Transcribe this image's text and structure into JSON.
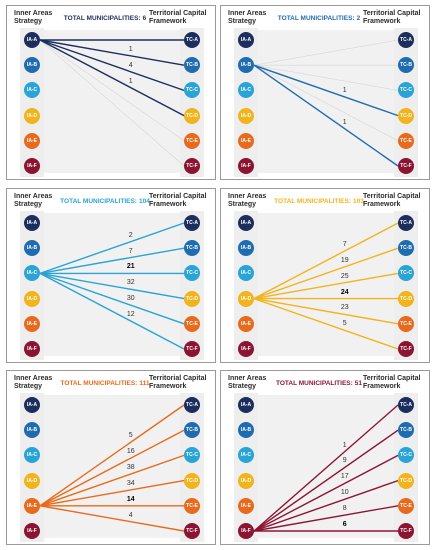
{
  "headers": {
    "left": "Inner Areas Strategy",
    "right": "Territorial Capital Framework"
  },
  "total_label": "TOTAL MUNICIPALITIES:",
  "left_nodes": [
    "IA-A",
    "IA-B",
    "IA-C",
    "IA-D",
    "IA-E",
    "IA-F"
  ],
  "right_nodes": [
    "TC-A",
    "TC-B",
    "TC-C",
    "TC-D",
    "TC-E",
    "TC-F"
  ],
  "node_colors": [
    "#1c2e5e",
    "#1f6cb0",
    "#2aa3d6",
    "#f2b41c",
    "#e86a1c",
    "#8c1433"
  ],
  "panels": [
    {
      "total": "6",
      "color": "#1c2e5e",
      "source": 0,
      "links": [
        {
          "to": 0,
          "value": ""
        },
        {
          "to": 1,
          "value": "1"
        },
        {
          "to": 2,
          "value": "4"
        },
        {
          "to": 3,
          "value": "1"
        }
      ]
    },
    {
      "total": "2",
      "color": "#1f6cb0",
      "source": 1,
      "links": [
        {
          "to": 3,
          "value": "1"
        },
        {
          "to": 5,
          "value": "1"
        }
      ]
    },
    {
      "total": "104",
      "color": "#2aa3d6",
      "source": 2,
      "links": [
        {
          "to": 0,
          "value": "2"
        },
        {
          "to": 1,
          "value": "7"
        },
        {
          "to": 2,
          "value": "21",
          "bold": true
        },
        {
          "to": 3,
          "value": "32"
        },
        {
          "to": 4,
          "value": "30"
        },
        {
          "to": 5,
          "value": "12"
        }
      ]
    },
    {
      "total": "103",
      "color": "#f2b41c",
      "source": 3,
      "links": [
        {
          "to": 0,
          "value": "7"
        },
        {
          "to": 1,
          "value": "19"
        },
        {
          "to": 2,
          "value": "25"
        },
        {
          "to": 3,
          "value": "24",
          "bold": true
        },
        {
          "to": 4,
          "value": "23"
        },
        {
          "to": 5,
          "value": "5"
        }
      ]
    },
    {
      "total": "111",
      "color": "#e86a1c",
      "source": 4,
      "links": [
        {
          "to": 0,
          "value": "5"
        },
        {
          "to": 1,
          "value": "16"
        },
        {
          "to": 2,
          "value": "38"
        },
        {
          "to": 3,
          "value": "34"
        },
        {
          "to": 4,
          "value": "14",
          "bold": true
        },
        {
          "to": 5,
          "value": "4"
        }
      ]
    },
    {
      "total": "51",
      "color": "#8c1433",
      "source": 5,
      "links": [
        {
          "to": 0,
          "value": "1"
        },
        {
          "to": 1,
          "value": "9"
        },
        {
          "to": 2,
          "value": "17"
        },
        {
          "to": 3,
          "value": "10"
        },
        {
          "to": 4,
          "value": "8"
        },
        {
          "to": 5,
          "value": "6",
          "bold": true
        }
      ]
    }
  ]
}
